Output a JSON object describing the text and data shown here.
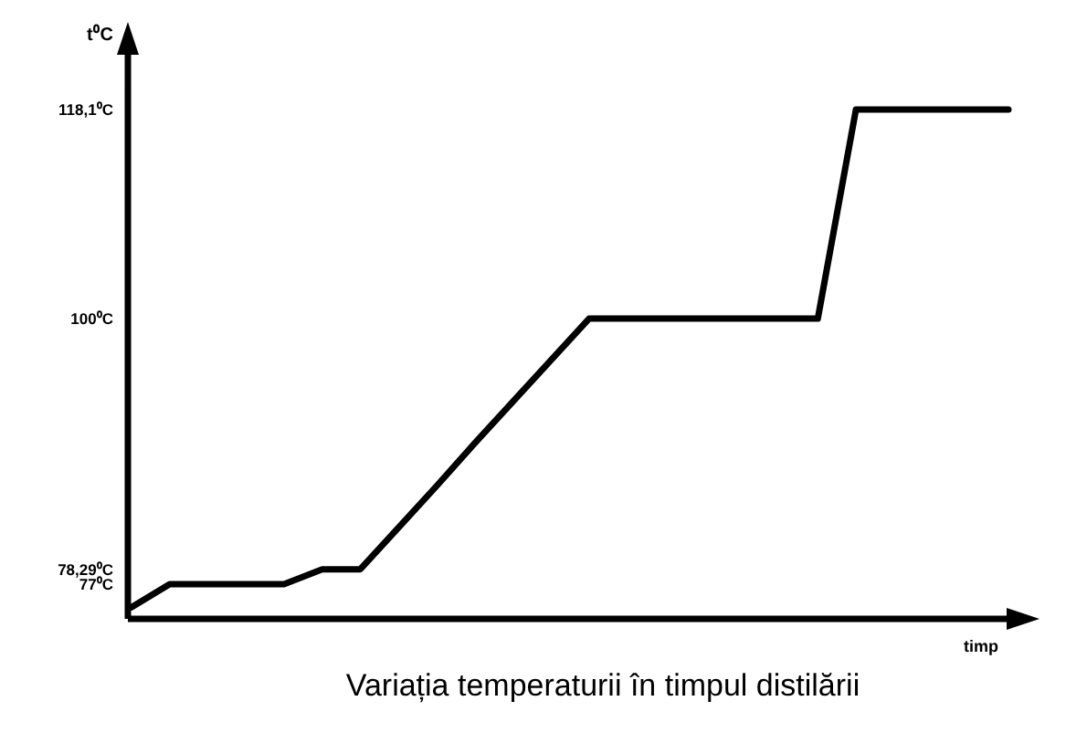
{
  "chart_data": {
    "type": "line",
    "title": "Variația temperaturii în timpul distilării",
    "xlabel": "timp",
    "ylabel": "t⁰C",
    "categories": [
      null,
      null,
      null,
      null,
      null,
      null,
      null,
      null,
      null,
      null,
      null,
      null,
      null,
      null,
      null,
      null,
      null,
      null,
      null,
      null,
      null,
      null,
      null,
      null
    ],
    "series": [
      {
        "color": "#000000",
        "values": [
          75,
          77,
          77,
          77,
          77,
          78.29,
          78.29,
          81.9,
          85.5,
          89.2,
          92.8,
          96.4,
          100,
          100,
          100,
          100,
          100,
          100,
          100,
          118.1,
          118.1,
          118.1,
          118.1,
          118.1
        ]
      }
    ],
    "ylim": [
      74,
      120
    ],
    "yticks": [
      {
        "value": 77,
        "label": "77⁰C"
      },
      {
        "value": 78.29,
        "label": "78,29⁰C"
      },
      {
        "value": 100,
        "label": "100⁰C"
      },
      {
        "value": 118.1,
        "label": "118,1⁰C"
      }
    ],
    "tick_labels": "y",
    "grid": false,
    "marker": "none",
    "line_style": "solid"
  }
}
